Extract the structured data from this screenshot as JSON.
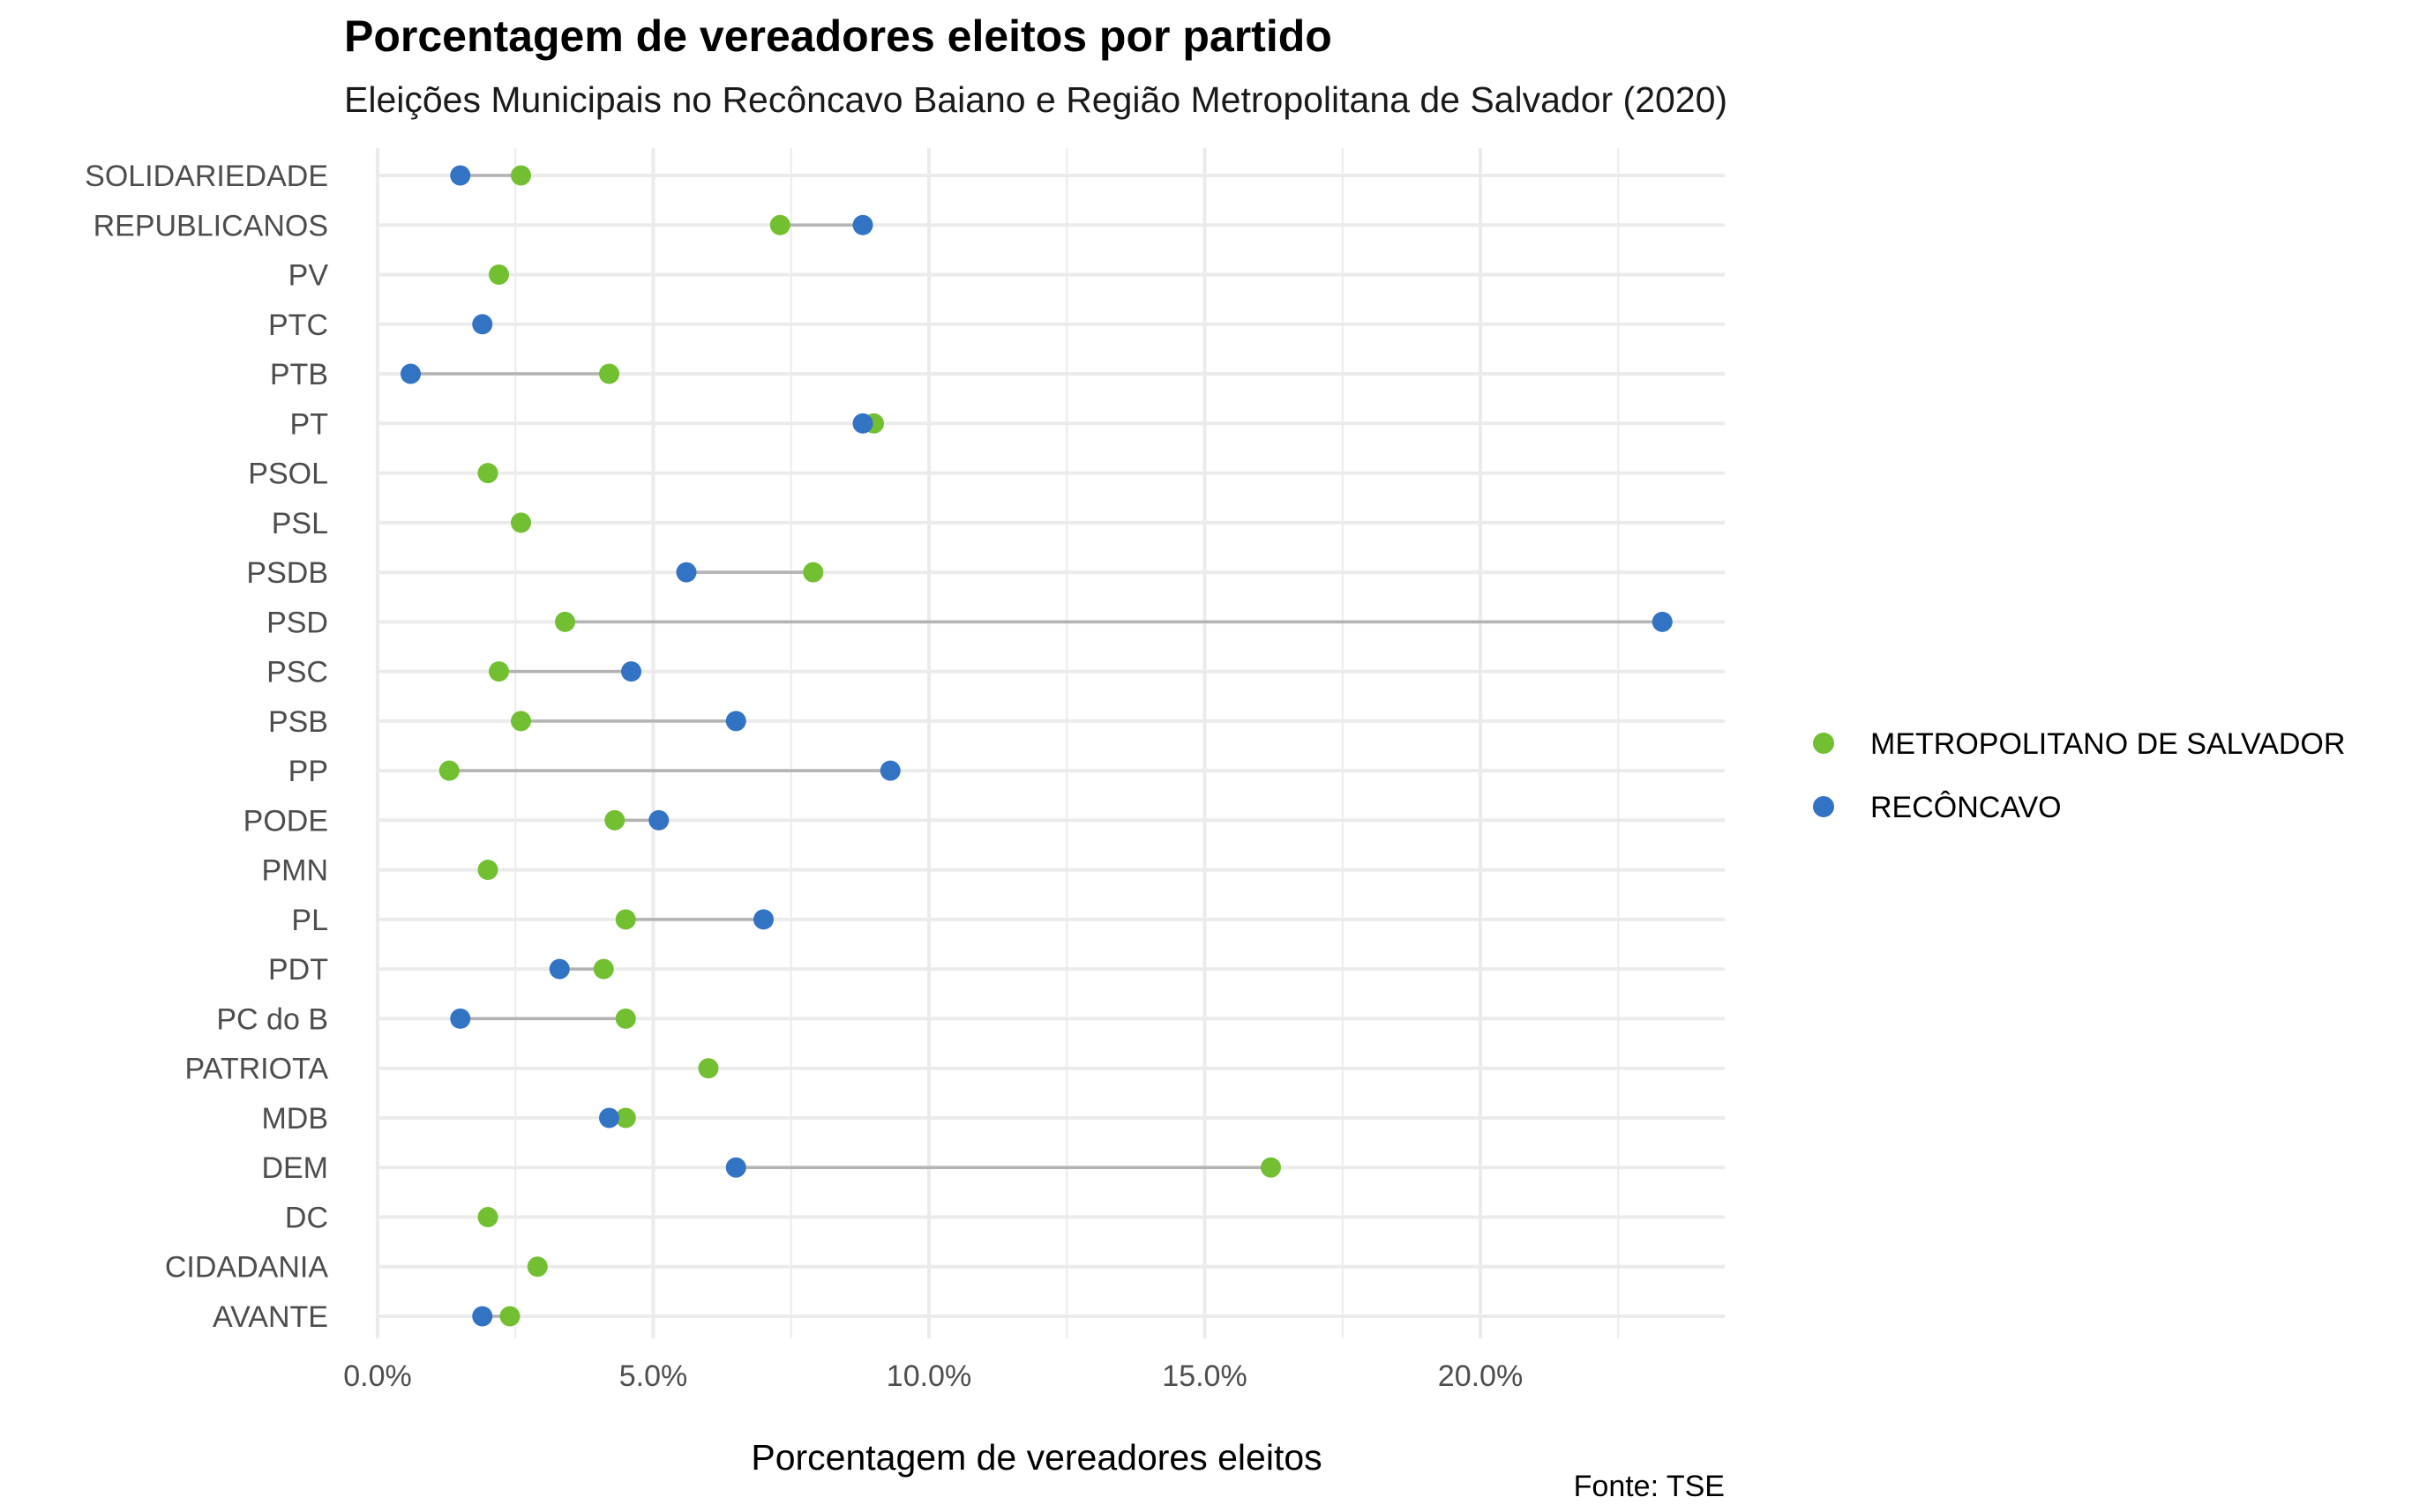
{
  "chart_data": {
    "type": "dumbbell",
    "title": "Porcentagem de vereadores eleitos por partido",
    "subtitle": "Eleições Municipais no Recôncavo Baiano e Região Metropolitana de Salvador (2020)",
    "xlabel": "Porcentagem de vereadores eleitos",
    "ylabel": "",
    "caption": "Fonte: TSE",
    "xlim": [
      0,
      24.5
    ],
    "x_ticks": [
      0,
      5,
      10,
      15,
      20
    ],
    "x_tick_labels": [
      "0.0%",
      "5.0%",
      "10.0%",
      "15.0%",
      "20.0%"
    ],
    "grid": true,
    "legend_position": "right",
    "categories": [
      "SOLIDARIEDADE",
      "REPUBLICANOS",
      "PV",
      "PTC",
      "PTB",
      "PT",
      "PSOL",
      "PSL",
      "PSDB",
      "PSD",
      "PSC",
      "PSB",
      "PP",
      "PODE",
      "PMN",
      "PL",
      "PDT",
      "PC do B",
      "PATRIOTA",
      "MDB",
      "DEM",
      "DC",
      "CIDADANIA",
      "AVANTE"
    ],
    "series": [
      {
        "name": "METROPOLITANO DE SALVADOR",
        "color": "#72bf31",
        "values": [
          2.6,
          7.3,
          2.2,
          null,
          4.2,
          9.0,
          2.0,
          2.6,
          7.9,
          3.4,
          2.2,
          2.6,
          1.3,
          4.3,
          2.0,
          4.5,
          4.1,
          4.5,
          6.0,
          4.5,
          16.2,
          2.0,
          2.9,
          2.4
        ]
      },
      {
        "name": "RECÔNCAVO",
        "color": "#3373c4",
        "values": [
          1.5,
          8.8,
          null,
          1.9,
          0.6,
          8.8,
          null,
          null,
          5.6,
          23.3,
          4.6,
          6.5,
          9.3,
          5.1,
          null,
          7.0,
          3.3,
          1.5,
          null,
          4.2,
          6.5,
          null,
          null,
          1.9
        ]
      }
    ],
    "colors": {
      "segment": "#b3b3b3",
      "grid": "#ebebeb"
    }
  }
}
